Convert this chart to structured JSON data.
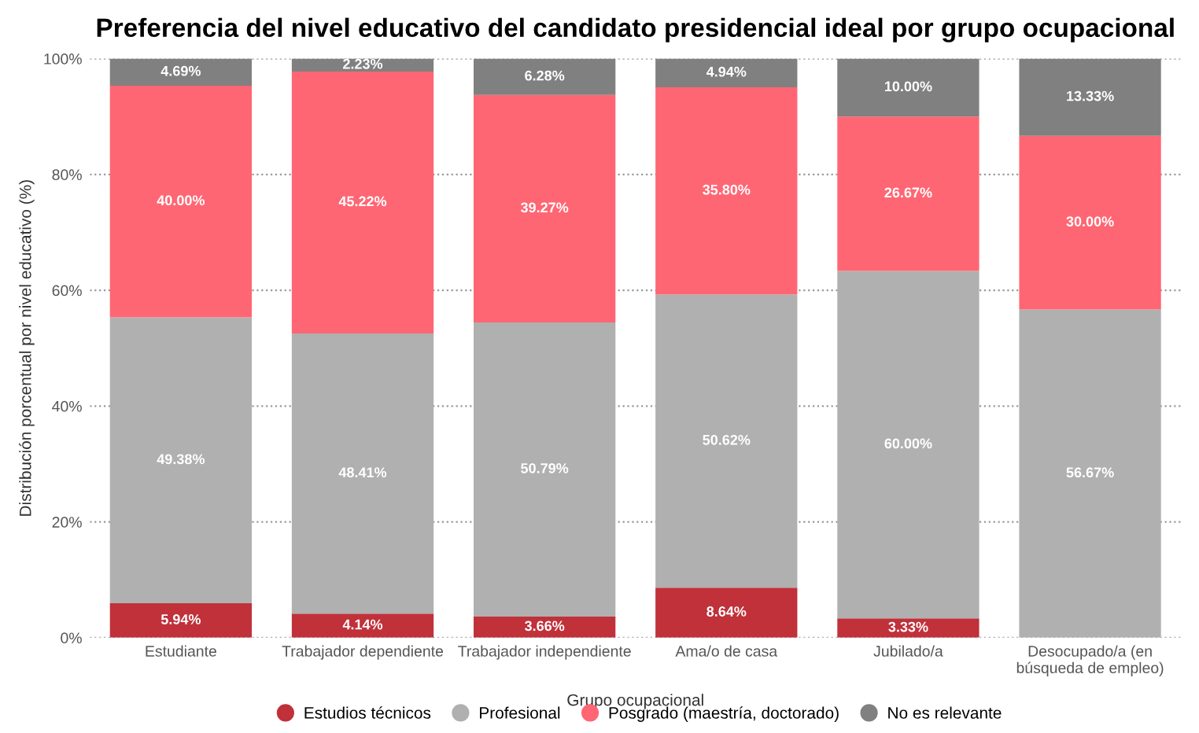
{
  "chart_data": {
    "type": "bar",
    "stacked": true,
    "title": "Preferencia del nivel educativo del candidato presidencial ideal por grupo ocupacional",
    "xlabel": "Grupo ocupacional",
    "ylabel": "Distribución porcentual por nivel educativo (%)",
    "categories": [
      "Estudiante",
      "Trabajador dependiente",
      "Trabajador independiente",
      "Ama/o de casa",
      "Jubilado/a",
      "Desocupado/a (en\nbúsqueda de empleo)"
    ],
    "series": [
      {
        "name": "Estudios técnicos",
        "color": "#c0313a",
        "values": [
          5.94,
          4.14,
          3.66,
          8.64,
          3.33,
          null
        ],
        "value_labels": [
          "5.94%",
          "4.14%",
          "3.66%",
          "8.64%",
          "3.33%",
          null
        ]
      },
      {
        "name": "Profesional",
        "color": "#b0b0b0",
        "values": [
          49.38,
          48.41,
          50.79,
          50.62,
          60.0,
          56.67
        ],
        "value_labels": [
          "49.38%",
          "48.41%",
          "50.79%",
          "50.62%",
          "60.00%",
          "56.67%"
        ]
      },
      {
        "name": "Posgrado (maestría, doctorado)",
        "color": "#ff6673",
        "values": [
          40.0,
          45.22,
          39.27,
          35.8,
          26.67,
          30.0
        ],
        "value_labels": [
          "40.00%",
          "45.22%",
          "39.27%",
          "35.80%",
          "26.67%",
          "30.00%"
        ]
      },
      {
        "name": "No es relevante",
        "color": "#808080",
        "values": [
          4.69,
          2.23,
          6.28,
          4.94,
          10.0,
          13.33
        ],
        "value_labels": [
          "4.69%",
          "2.23%",
          "6.28%",
          "4.94%",
          "10.00%",
          "13.33%"
        ]
      }
    ],
    "ylim": [
      0,
      100
    ],
    "yticks": [
      {
        "value": 0,
        "label": "0%"
      },
      {
        "value": 20,
        "label": "20%"
      },
      {
        "value": 40,
        "label": "40%"
      },
      {
        "value": 60,
        "label": "60%"
      },
      {
        "value": 80,
        "label": "80%"
      },
      {
        "value": 100,
        "label": "100%"
      }
    ],
    "grid": "y",
    "legend": "bottom",
    "marker": "circle"
  }
}
